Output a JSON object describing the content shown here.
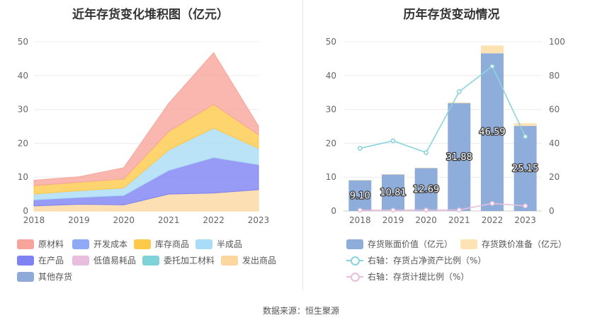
{
  "left_chart": {
    "title": "近年存货变化堆积图（亿元）",
    "legend": [
      {
        "label": "原材料",
        "color": "#f7a59c"
      },
      {
        "label": "开发成本",
        "color": "#8fa9f6"
      },
      {
        "label": "库存商品",
        "color": "#fcc94a"
      },
      {
        "label": "半成品",
        "color": "#a9dcf6"
      },
      {
        "label": "在产品",
        "color": "#7e82f2"
      },
      {
        "label": "低值易耗品",
        "color": "#e8bedc"
      },
      {
        "label": "委托加工材料",
        "color": "#7fd3d8"
      },
      {
        "label": "发出商品",
        "color": "#fbd79f"
      },
      {
        "label": "其他存货",
        "color": "#8fa9d8"
      }
    ]
  },
  "right_chart": {
    "title": "历年存货变动情况",
    "legend": [
      {
        "label": "存货账面价值（亿元）",
        "color": "#8fadda"
      },
      {
        "label": "存货跌价准备（亿元）",
        "color": "#fde2b3"
      },
      {
        "label": "右轴：存货占净资产比例（%）",
        "color": "#8ad4dc"
      },
      {
        "label": "右轴：存货计提比例（%）",
        "color": "#e8bedc"
      }
    ]
  },
  "chart_data": [
    {
      "type": "area",
      "title": "近年存货变化堆积图（亿元）",
      "stacked": true,
      "x": [
        "2018",
        "2019",
        "2020",
        "2021",
        "2022",
        "2023"
      ],
      "ylim": [
        0,
        50
      ],
      "yticks": [
        0,
        10,
        20,
        30,
        40,
        50
      ],
      "grid": true,
      "legend_position": "bottom",
      "series": [
        {
          "name": "发出商品",
          "color": "#fbd79f",
          "values": [
            1.5,
            2.0,
            1.8,
            5.0,
            5.3,
            6.3
          ]
        },
        {
          "name": "在产品",
          "color": "#7e82f2",
          "values": [
            1.8,
            2.0,
            2.8,
            7.0,
            10.5,
            7.4
          ]
        },
        {
          "name": "半成品",
          "color": "#a9dcf6",
          "values": [
            1.7,
            2.0,
            2.2,
            6.0,
            8.7,
            4.8
          ]
        },
        {
          "name": "库存商品",
          "color": "#fcc94a",
          "values": [
            2.5,
            2.5,
            2.7,
            5.5,
            7.0,
            4.0
          ]
        },
        {
          "name": "原材料",
          "color": "#f7a59c",
          "values": [
            1.6,
            1.6,
            3.3,
            8.3,
            15.3,
            2.6
          ]
        }
      ]
    },
    {
      "type": "bar",
      "title": "历年存货变动情况",
      "stacked": true,
      "categories": [
        "2018",
        "2019",
        "2020",
        "2021",
        "2022",
        "2023"
      ],
      "ylim": [
        0,
        50
      ],
      "yticks": [
        0,
        10,
        20,
        30,
        40,
        50
      ],
      "y2lim": [
        0,
        100
      ],
      "y2ticks": [
        0,
        20,
        40,
        60,
        80,
        100
      ],
      "legend_position": "bottom",
      "series": [
        {
          "name": "存货账面价值（亿元）",
          "color": "#8fadda",
          "values": [
            9.1,
            10.81,
            12.69,
            31.88,
            46.59,
            25.15
          ],
          "labels": [
            "9.10",
            "10.81",
            "12.69",
            "31.88",
            "46.59",
            "25.15"
          ]
        },
        {
          "name": "存货跌价准备（亿元）",
          "color": "#fde2b3",
          "values": [
            0.05,
            0.05,
            0.08,
            0.2,
            2.3,
            0.8
          ]
        }
      ],
      "lines": [
        {
          "name": "右轴：存货占净资产比例（%）",
          "color": "#8ad4dc",
          "axis": "right",
          "values": [
            37,
            41.5,
            34.5,
            70.5,
            85.5,
            44
          ]
        },
        {
          "name": "右轴：存货计提比例（%）",
          "color": "#e8bedc",
          "axis": "right",
          "values": [
            0.5,
            0.5,
            0.6,
            0.6,
            4.5,
            3
          ]
        }
      ]
    }
  ],
  "footer": {
    "source": "数据来源：恒生聚源"
  }
}
